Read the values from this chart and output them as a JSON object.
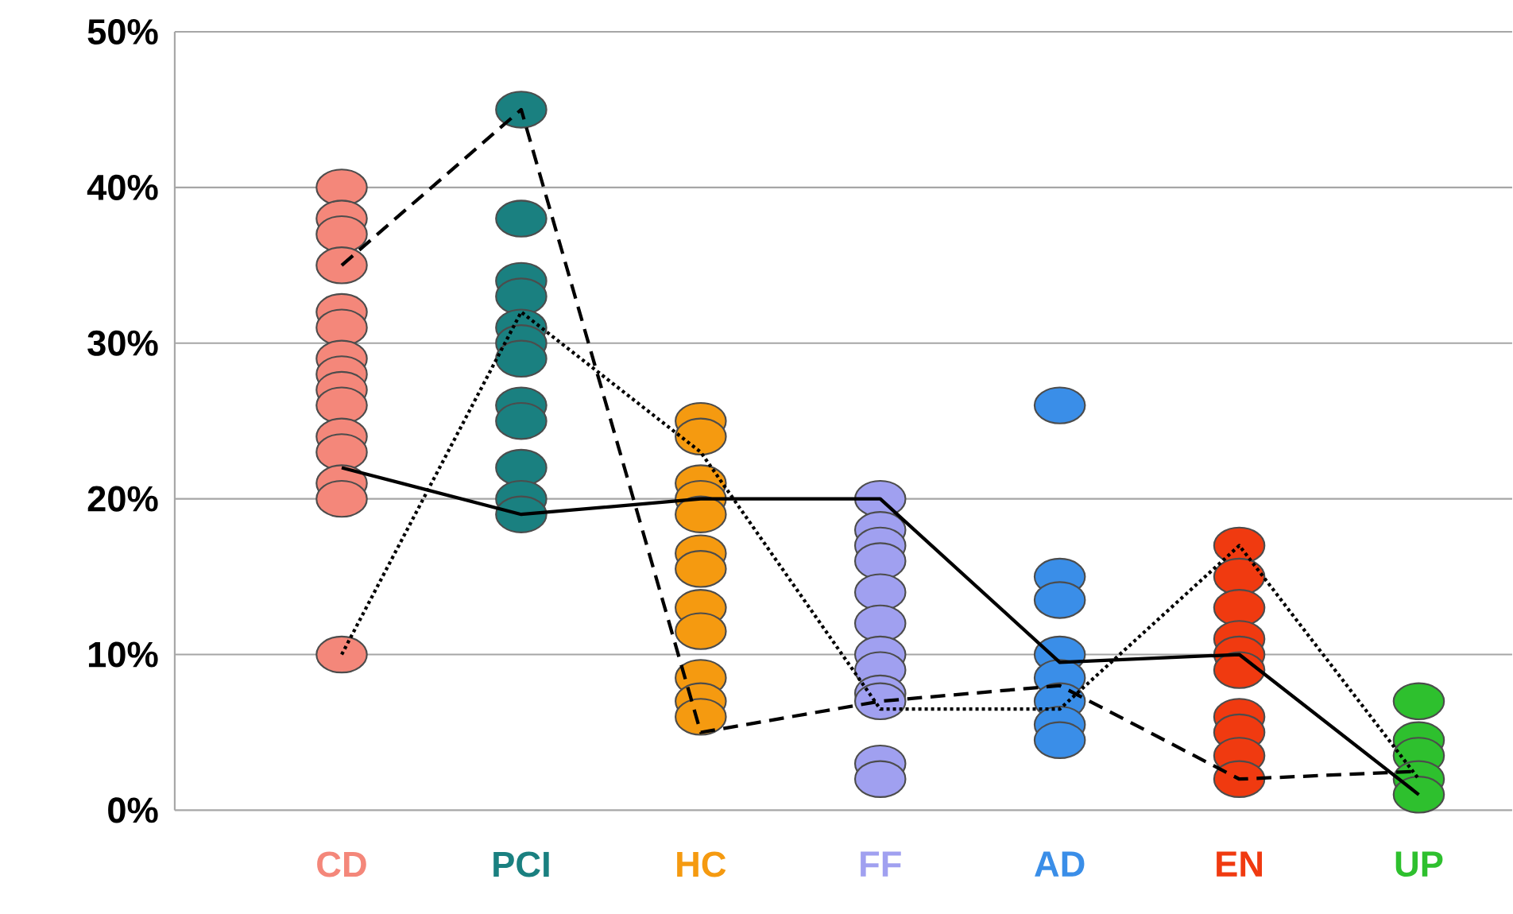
{
  "chart_data": {
    "type": "scatter",
    "categories": [
      "CD",
      "PCI",
      "HC",
      "FF",
      "AD",
      "EN",
      "UP"
    ],
    "ylim": [
      0,
      50
    ],
    "yticks": [
      {
        "value": 0,
        "label": "0%"
      },
      {
        "value": 10,
        "label": "10%"
      },
      {
        "value": 20,
        "label": "20%"
      },
      {
        "value": 30,
        "label": "30%"
      },
      {
        "value": 40,
        "label": "40%"
      },
      {
        "value": 50,
        "label": "50%"
      }
    ],
    "grid": "y",
    "marker": "circle",
    "series": [
      {
        "color": "#f4877a",
        "x": [
          "CD",
          "CD",
          "CD",
          "CD",
          "CD",
          "CD",
          "CD",
          "CD",
          "CD",
          "CD",
          "CD",
          "CD",
          "CD",
          "CD",
          "CD"
        ],
        "values": [
          40,
          38,
          37,
          35,
          32,
          31,
          29,
          28,
          27,
          26,
          24,
          23,
          21,
          20,
          10
        ]
      },
      {
        "color": "#1a8080",
        "x": [
          "PCI",
          "PCI",
          "PCI",
          "PCI",
          "PCI",
          "PCI",
          "PCI",
          "PCI",
          "PCI",
          "PCI",
          "PCI",
          "PCI"
        ],
        "values": [
          45,
          38,
          34,
          33,
          31,
          30,
          29,
          26,
          25,
          22,
          20,
          19
        ]
      },
      {
        "color": "#f59a10",
        "x": [
          "HC",
          "HC",
          "HC",
          "HC",
          "HC",
          "HC",
          "HC",
          "HC",
          "HC",
          "HC",
          "HC",
          "HC"
        ],
        "values": [
          25,
          24,
          21,
          20,
          19,
          16.5,
          15.5,
          13,
          11.5,
          8.5,
          7,
          6
        ]
      },
      {
        "color": "#a0a0f0",
        "x": [
          "FF",
          "FF",
          "FF",
          "FF",
          "FF",
          "FF",
          "FF",
          "FF",
          "FF",
          "FF",
          "FF",
          "FF"
        ],
        "values": [
          20,
          18,
          17,
          16,
          14,
          12,
          10,
          9,
          7.5,
          7,
          3,
          2
        ]
      },
      {
        "color": "#3a8ee8",
        "x": [
          "AD",
          "AD",
          "AD",
          "AD",
          "AD",
          "AD",
          "AD",
          "AD"
        ],
        "values": [
          26,
          15,
          13.5,
          10,
          8.5,
          7,
          5.5,
          4.5
        ]
      },
      {
        "color": "#f03a10",
        "x": [
          "EN",
          "EN",
          "EN",
          "EN",
          "EN",
          "EN",
          "EN",
          "EN",
          "EN",
          "EN"
        ],
        "values": [
          17,
          15,
          13,
          11,
          10,
          9,
          6,
          5,
          3.5,
          2
        ]
      },
      {
        "color": "#2ec02e",
        "x": [
          "UP",
          "UP",
          "UP",
          "UP",
          "UP"
        ],
        "values": [
          7,
          4.5,
          3.5,
          2,
          1
        ]
      },
      {
        "type": "line",
        "color": "#000000",
        "line_style": "solid",
        "marker": "none",
        "values": [
          22,
          19,
          20,
          20,
          9.5,
          10,
          1
        ]
      },
      {
        "type": "line",
        "color": "#000000",
        "line_style": "dashed",
        "marker": "none",
        "values": [
          35,
          45,
          5,
          7,
          8,
          2,
          2.5
        ]
      },
      {
        "type": "line",
        "color": "#000000",
        "line_style": "dotted",
        "marker": "none",
        "values": [
          10,
          32,
          23,
          6.5,
          6.5,
          17,
          2
        ]
      }
    ]
  }
}
